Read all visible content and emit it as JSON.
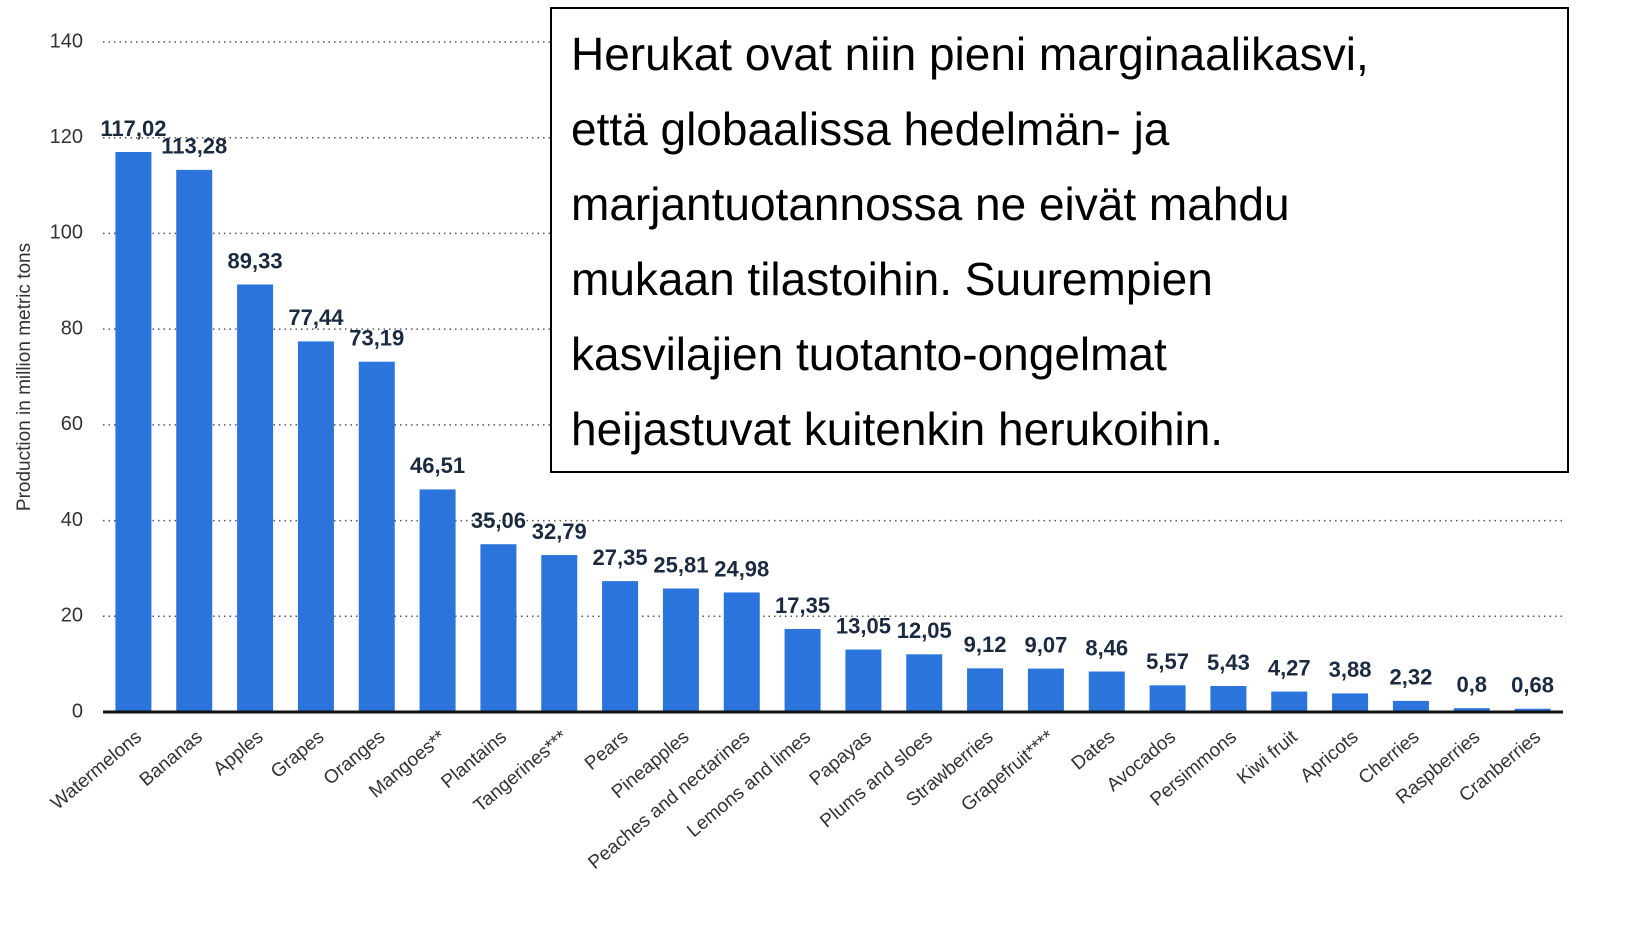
{
  "chart_data": {
    "type": "bar",
    "y_label": "Production in million metric tons",
    "categories": [
      "Watermelons",
      "Bananas",
      "Apples",
      "Grapes",
      "Oranges",
      "Mangoes**",
      "Plantains",
      "Tangerines***",
      "Pears",
      "Pineapples",
      "Peaches and nectarines",
      "Lemons and limes",
      "Papayas",
      "Plums and sloes",
      "Strawberries",
      "Grapefruit****",
      "Dates",
      "Avocados",
      "Persimmons",
      "Kiwi fruit",
      "Apricots",
      "Cherries",
      "Raspberries",
      "Cranberries"
    ],
    "values": [
      117.02,
      113.28,
      89.33,
      77.44,
      73.19,
      46.51,
      35.06,
      32.79,
      27.35,
      25.81,
      24.98,
      17.35,
      13.05,
      12.05,
      9.12,
      9.07,
      8.46,
      5.57,
      5.43,
      4.27,
      3.88,
      2.32,
      0.8,
      0.68
    ],
    "value_labels": [
      "117,02",
      "113,28",
      "89,33",
      "77,44",
      "73,19",
      "46,51",
      "35,06",
      "32,79",
      "27,35",
      "25,81",
      "24,98",
      "17,35",
      "13,05",
      "12,05",
      "9,12",
      "9,07",
      "8,46",
      "5,57",
      "5,43",
      "4,27",
      "3,88",
      "2,32",
      "0,8",
      "0,68"
    ],
    "color": "#2a74dc",
    "ylim": [
      0,
      140
    ],
    "yticks": [
      0,
      20,
      40,
      60,
      80,
      100,
      120,
      140
    ],
    "grid": true,
    "annotation": [
      "Herukat ovat niin pieni marginaalikasvi,",
      "että globaalissa hedelmän- ja",
      "marjantuotannossa ne eivät mahdu",
      "mukaan tilastoihin. Suurempien",
      "kasvilajien tuotanto-ongelmat",
      "heijastuvat kuitenkin herukoihin."
    ]
  }
}
